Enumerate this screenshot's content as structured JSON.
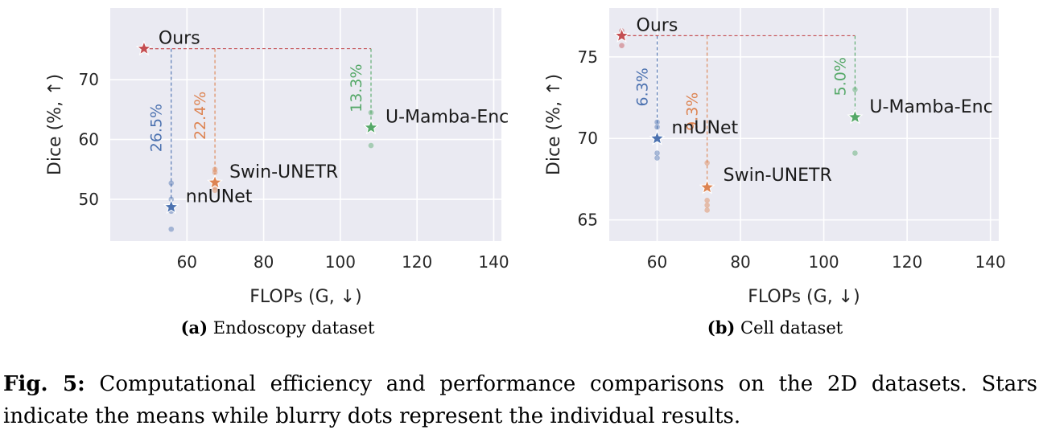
{
  "chart_data": [
    {
      "type": "scatter",
      "subcaption_label": "(a)",
      "subcaption_text": "Endoscopy dataset",
      "xlabel": "FLOPs (G, ↓)",
      "ylabel": "Dice (%, ↑)",
      "xlim": [
        40,
        142
      ],
      "ylim": [
        43,
        82
      ],
      "xticks": [
        60,
        80,
        100,
        120,
        140
      ],
      "yticks": [
        50,
        60,
        70
      ],
      "grid": true,
      "reference": "Ours",
      "points": [
        {
          "name": "Ours",
          "x": 48.8,
          "y": 75.2,
          "color": "#c44e52",
          "individual": [
            75.0,
            75.4
          ],
          "pct": "",
          "label_side": "right-up"
        },
        {
          "name": "nnUNet",
          "x": 55.9,
          "y": 48.7,
          "color": "#4c72b0",
          "individual": [
            52.7,
            50.0,
            48.0,
            45.0
          ],
          "pct": "26.5%",
          "label_side": "right-up"
        },
        {
          "name": "Swin-UNETR",
          "x": 67.3,
          "y": 52.8,
          "color": "#dd8452",
          "individual": [
            55.0,
            54.5,
            52.0,
            51.5
          ],
          "pct": "22.4%",
          "label_side": "right-up"
        },
        {
          "name": "U-Mamba-Enc",
          "x": 108.0,
          "y": 62.0,
          "color": "#55a868",
          "individual": [
            64.5,
            59.0
          ],
          "pct": "13.3%",
          "label_side": "right-up"
        }
      ]
    },
    {
      "type": "scatter",
      "subcaption_label": "(b)",
      "subcaption_text": "Cell dataset",
      "xlabel": "FLOPs (G, ↓)",
      "ylabel": "Dice (%, ↑)",
      "xlim": [
        48.5,
        142
      ],
      "ylim": [
        63.7,
        78.0
      ],
      "xticks": [
        60,
        80,
        100,
        120,
        140
      ],
      "yticks": [
        65,
        70,
        75
      ],
      "grid": true,
      "reference": "Ours",
      "points": [
        {
          "name": "Ours",
          "x": 51.5,
          "y": 76.3,
          "color": "#c44e52",
          "individual": [
            76.6,
            75.7
          ],
          "pct": "",
          "label_side": "right-up"
        },
        {
          "name": "nnUNet",
          "x": 60.0,
          "y": 70.0,
          "color": "#4c72b0",
          "individual": [
            71.0,
            70.7,
            69.1,
            68.8
          ],
          "pct": "6.3%",
          "label_side": "right-up"
        },
        {
          "name": "Swin-UNETR",
          "x": 72.0,
          "y": 67.0,
          "color": "#dd8452",
          "individual": [
            68.5,
            66.2,
            65.9,
            65.6
          ],
          "pct": "9.3%",
          "label_side": "right-down"
        },
        {
          "name": "U-Mamba-Enc",
          "x": 107.5,
          "y": 71.3,
          "color": "#55a868",
          "individual": [
            73.0,
            69.1
          ],
          "pct": "5.0%",
          "label_side": "right-up"
        }
      ]
    }
  ],
  "caption": {
    "label": "Fig. 5:",
    "text": "Computational efficiency and performance comparisons on the 2D datasets. Stars indicate the means while blurry dots represent the individual results."
  },
  "colors": {
    "plot_background": "#eaeaf2",
    "grid": "#ffffff",
    "ours": "#c44e52",
    "nnunet": "#4c72b0",
    "swin_unetr": "#dd8452",
    "u_mamba_enc": "#55a868"
  }
}
